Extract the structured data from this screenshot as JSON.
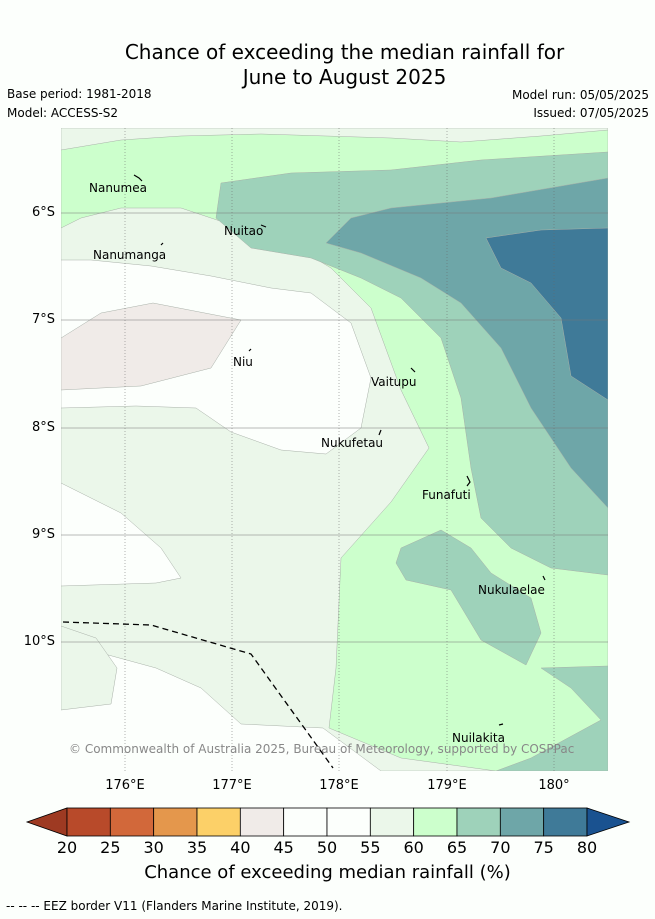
{
  "title": {
    "line1": "Chance of exceeding the median rainfall for",
    "line2": "June to August 2025"
  },
  "meta": {
    "base_period": "Base period: 1981-2018",
    "model": "Model: ACCESS-S2",
    "model_run": "Model run: 05/05/2025",
    "issued": "Issued: 07/05/2025"
  },
  "map": {
    "lat_labels": [
      "6°S",
      "7°S",
      "8°S",
      "9°S",
      "10°S"
    ],
    "lon_labels": [
      "176°E",
      "177°E",
      "178°E",
      "179°E",
      "180°"
    ],
    "places": [
      "Nanumea",
      "Nuitao",
      "Nanumanga",
      "Niu",
      "Vaitupu",
      "Nukufetau",
      "Funafuti",
      "Nukulaelae",
      "Nuilakita"
    ],
    "copyright": "© Commonwealth of Australia 2025, Bureau of Meteorology, supported by COSPPac"
  },
  "colorbar": {
    "ticks": [
      "20",
      "25",
      "30",
      "35",
      "40",
      "45",
      "50",
      "55",
      "60",
      "65",
      "70",
      "75",
      "80"
    ],
    "colors": [
      "#b84a2a",
      "#d2683a",
      "#e4974c",
      "#fcd068",
      "#f0ebe8",
      "#fcfffc",
      "#fcfffc",
      "#ebf7ea",
      "#ccffcc",
      "#9ed2ba",
      "#6ea6a8",
      "#3f7a98"
    ],
    "low_color": "#9e3a22",
    "high_color": "#1a5290",
    "label": "Chance of exceeding median rainfall (%)"
  },
  "footer": "-- -- -- EEZ border V11 (Flanders Marine Institute, 2019)."
}
